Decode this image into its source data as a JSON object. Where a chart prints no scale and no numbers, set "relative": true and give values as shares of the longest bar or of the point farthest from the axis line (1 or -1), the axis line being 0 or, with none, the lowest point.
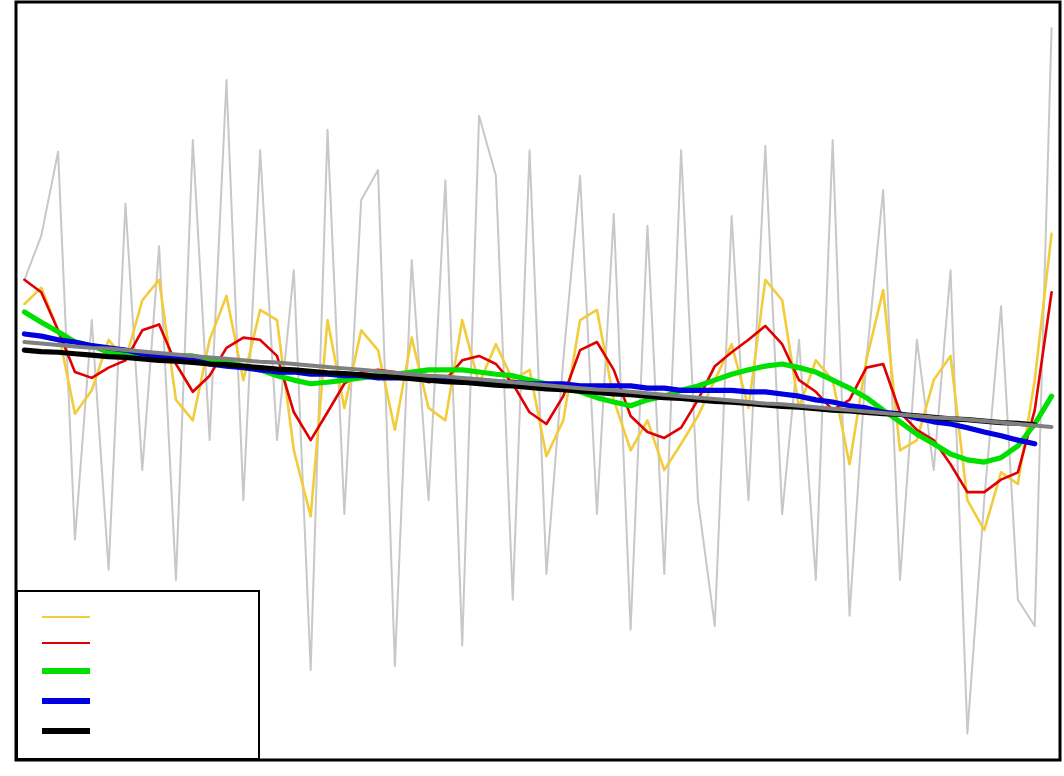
{
  "chart_data": {
    "type": "line",
    "relative": true,
    "grid": false,
    "categories": [
      null,
      null,
      null,
      null,
      null,
      null,
      null,
      null,
      null,
      null,
      null,
      null,
      null,
      null,
      null,
      null,
      null,
      null,
      null,
      null,
      null,
      null,
      null,
      null,
      null,
      null,
      null,
      null,
      null,
      null,
      null,
      null,
      null,
      null,
      null,
      null,
      null,
      null,
      null,
      null,
      null,
      null,
      null,
      null,
      null,
      null,
      null,
      null,
      null,
      null,
      null,
      null,
      null,
      null,
      null,
      null,
      null,
      null,
      null,
      null,
      null,
      null
    ],
    "series": [
      {
        "color": "#c8c8c8",
        "values": [
          0.656,
          0.716,
          0.831,
          0.301,
          0.601,
          0.26,
          0.76,
          0.396,
          0.702,
          0.246,
          0.847,
          0.437,
          0.929,
          0.355,
          0.833,
          0.437,
          0.669,
          0.123,
          0.861,
          0.336,
          0.765,
          0.806,
          0.128,
          0.683,
          0.355,
          0.792,
          0.156,
          0.88,
          0.798,
          0.219,
          0.833,
          0.254,
          0.546,
          0.798,
          0.336,
          0.746,
          0.178,
          0.73,
          0.254,
          0.833,
          0.355,
          0.183,
          0.743,
          0.355,
          0.839,
          0.336,
          0.574,
          0.246,
          0.847,
          0.197,
          0.546,
          0.779,
          0.246,
          0.574,
          0.396,
          0.669,
          0.036,
          0.355,
          0.62,
          0.219,
          0.183,
          1.0
        ]
      },
      {
        "color": "#f2cc3a",
        "values": [
          0.623,
          0.645,
          0.587,
          0.473,
          0.505,
          0.574,
          0.546,
          0.628,
          0.656,
          0.492,
          0.464,
          0.574,
          0.634,
          0.519,
          0.615,
          0.601,
          0.423,
          0.333,
          0.601,
          0.481,
          0.587,
          0.56,
          0.451,
          0.577,
          0.481,
          0.464,
          0.601,
          0.514,
          0.568,
          0.519,
          0.533,
          0.415,
          0.464,
          0.601,
          0.615,
          0.492,
          0.423,
          0.464,
          0.396,
          0.432,
          0.47,
          0.519,
          0.568,
          0.481,
          0.656,
          0.628,
          0.481,
          0.546,
          0.519,
          0.404,
          0.546,
          0.642,
          0.423,
          0.437,
          0.519,
          0.552,
          0.355,
          0.314,
          0.393,
          0.377,
          0.519,
          0.719
        ]
      },
      {
        "color": "#e00000",
        "values": [
          0.656,
          0.639,
          0.587,
          0.53,
          0.522,
          0.536,
          0.546,
          0.587,
          0.595,
          0.541,
          0.503,
          0.525,
          0.563,
          0.577,
          0.574,
          0.552,
          0.475,
          0.437,
          0.475,
          0.514,
          0.53,
          0.533,
          0.53,
          0.525,
          0.516,
          0.519,
          0.546,
          0.552,
          0.541,
          0.514,
          0.475,
          0.459,
          0.497,
          0.56,
          0.571,
          0.533,
          0.47,
          0.448,
          0.44,
          0.454,
          0.492,
          0.538,
          0.557,
          0.574,
          0.593,
          0.568,
          0.519,
          0.503,
          0.478,
          0.492,
          0.536,
          0.541,
          0.475,
          0.451,
          0.437,
          0.404,
          0.366,
          0.366,
          0.383,
          0.393,
          0.478,
          0.639
        ]
      },
      {
        "color": "#00e000",
        "values": [
          0.612,
          0.598,
          0.585,
          0.571,
          0.566,
          0.557,
          0.555,
          0.555,
          0.552,
          0.552,
          0.552,
          0.546,
          0.544,
          0.538,
          0.533,
          0.525,
          0.519,
          0.514,
          0.516,
          0.519,
          0.522,
          0.525,
          0.527,
          0.53,
          0.533,
          0.533,
          0.533,
          0.53,
          0.527,
          0.525,
          0.519,
          0.514,
          0.508,
          0.503,
          0.495,
          0.489,
          0.484,
          0.492,
          0.497,
          0.505,
          0.511,
          0.519,
          0.527,
          0.533,
          0.538,
          0.541,
          0.536,
          0.53,
          0.519,
          0.508,
          0.495,
          0.478,
          0.462,
          0.445,
          0.432,
          0.418,
          0.41,
          0.407,
          0.413,
          0.429,
          0.459,
          0.497
        ]
      },
      {
        "color": "#0000e0",
        "values": [
          0.582,
          0.579,
          0.574,
          0.571,
          0.566,
          0.563,
          0.56,
          0.555,
          0.552,
          0.549,
          0.546,
          0.541,
          0.538,
          0.536,
          0.533,
          0.53,
          0.53,
          0.527,
          0.527,
          0.525,
          0.525,
          0.522,
          0.522,
          0.522,
          0.519,
          0.519,
          0.519,
          0.516,
          0.516,
          0.516,
          0.514,
          0.514,
          0.514,
          0.511,
          0.511,
          0.511,
          0.511,
          0.508,
          0.508,
          0.505,
          0.505,
          0.505,
          0.505,
          0.503,
          0.503,
          0.5,
          0.497,
          0.492,
          0.489,
          0.484,
          0.481,
          0.475,
          0.473,
          0.467,
          0.462,
          0.459,
          0.454,
          0.448,
          0.443,
          0.437,
          0.432,
          null
        ]
      },
      {
        "color": "#000000",
        "values": [
          0.56,
          0.558,
          0.557,
          0.555,
          0.553,
          0.551,
          0.55,
          0.548,
          0.546,
          0.545,
          0.543,
          0.541,
          0.54,
          0.538,
          0.536,
          0.534,
          0.533,
          0.531,
          0.529,
          0.528,
          0.526,
          0.524,
          0.523,
          0.521,
          0.519,
          0.517,
          0.516,
          0.514,
          0.512,
          0.511,
          0.509,
          0.507,
          0.506,
          0.504,
          0.502,
          0.5,
          0.499,
          0.497,
          0.495,
          0.494,
          0.492,
          0.49,
          0.489,
          0.487,
          0.485,
          0.483,
          0.482,
          0.48,
          0.478,
          0.477,
          0.475,
          0.473,
          0.472,
          0.47,
          0.468,
          0.466,
          0.465,
          0.463,
          0.461,
          0.46,
          0.458,
          null
        ]
      },
      {
        "color": "#808080",
        "values": [
          0.571,
          0.569,
          0.567,
          0.565,
          0.563,
          0.562,
          0.56,
          0.558,
          0.556,
          0.554,
          0.552,
          0.55,
          0.548,
          0.546,
          0.544,
          0.543,
          0.541,
          0.539,
          0.537,
          0.535,
          0.533,
          0.531,
          0.529,
          0.527,
          0.525,
          0.524,
          0.522,
          0.52,
          0.518,
          0.516,
          0.514,
          0.512,
          0.51,
          0.508,
          0.506,
          0.505,
          0.503,
          0.501,
          0.499,
          0.497,
          0.495,
          0.493,
          0.491,
          0.489,
          0.487,
          0.486,
          0.484,
          0.482,
          0.48,
          0.478,
          0.476,
          0.474,
          0.472,
          0.47,
          0.468,
          0.467,
          0.465,
          0.463,
          0.461,
          0.459,
          0.457,
          0.455
        ]
      }
    ]
  }
}
